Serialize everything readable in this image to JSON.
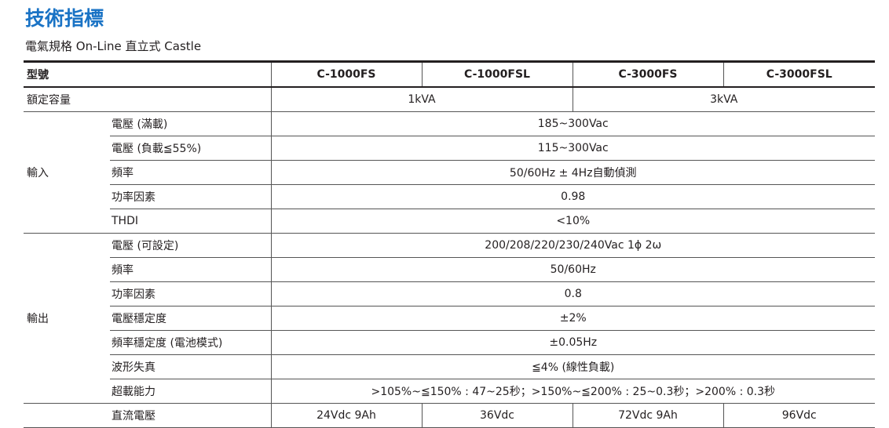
{
  "header": {
    "title": "技術指標",
    "subtitle": "電氣規格 On-Line 直立式 Castle"
  },
  "table": {
    "columns": [
      "型號",
      "C-1000FS",
      "C-1000FSL",
      "C-3000FS",
      "C-3000FSL"
    ],
    "capacity": {
      "label": "額定容量",
      "values": [
        "1kVA",
        "3kVA"
      ]
    },
    "groups": [
      {
        "label": "輸入",
        "rows": [
          {
            "label": "電壓 (滿載)",
            "values": [
              "185~300Vac"
            ]
          },
          {
            "label": "電壓 (負載≦55%)",
            "values": [
              "115~300Vac"
            ]
          },
          {
            "label": "頻率",
            "values": [
              "50/60Hz ± 4Hz自動偵測"
            ]
          },
          {
            "label": "功率因素",
            "values": [
              "0.98"
            ]
          },
          {
            "label": "THDI",
            "values": [
              "<10%"
            ]
          }
        ]
      },
      {
        "label": "輸出",
        "rows": [
          {
            "label": "電壓 (可設定)",
            "values": [
              "200/208/220/230/240Vac 1ϕ 2ω"
            ]
          },
          {
            "label": "頻率",
            "values": [
              "50/60Hz"
            ]
          },
          {
            "label": "功率因素",
            "values": [
              "0.8"
            ]
          },
          {
            "label": "電壓穩定度",
            "values": [
              "±2%"
            ]
          },
          {
            "label": "頻率穩定度 (電池模式)",
            "values": [
              "±0.05Hz"
            ]
          },
          {
            "label": "波形失真",
            "values": [
              "≦4% (線性負載)"
            ]
          },
          {
            "label": "超載能力",
            "values": [
              ">105%~≦150% : 47~25秒；>150%~≦200% : 25~0.3秒；>200% : 0.3秒"
            ]
          }
        ]
      }
    ],
    "partial_row": {
      "label": "直流電壓",
      "values": [
        "24Vdc 9Ah",
        "36Vdc",
        "72Vdc 9Ah",
        "96Vdc"
      ]
    }
  }
}
